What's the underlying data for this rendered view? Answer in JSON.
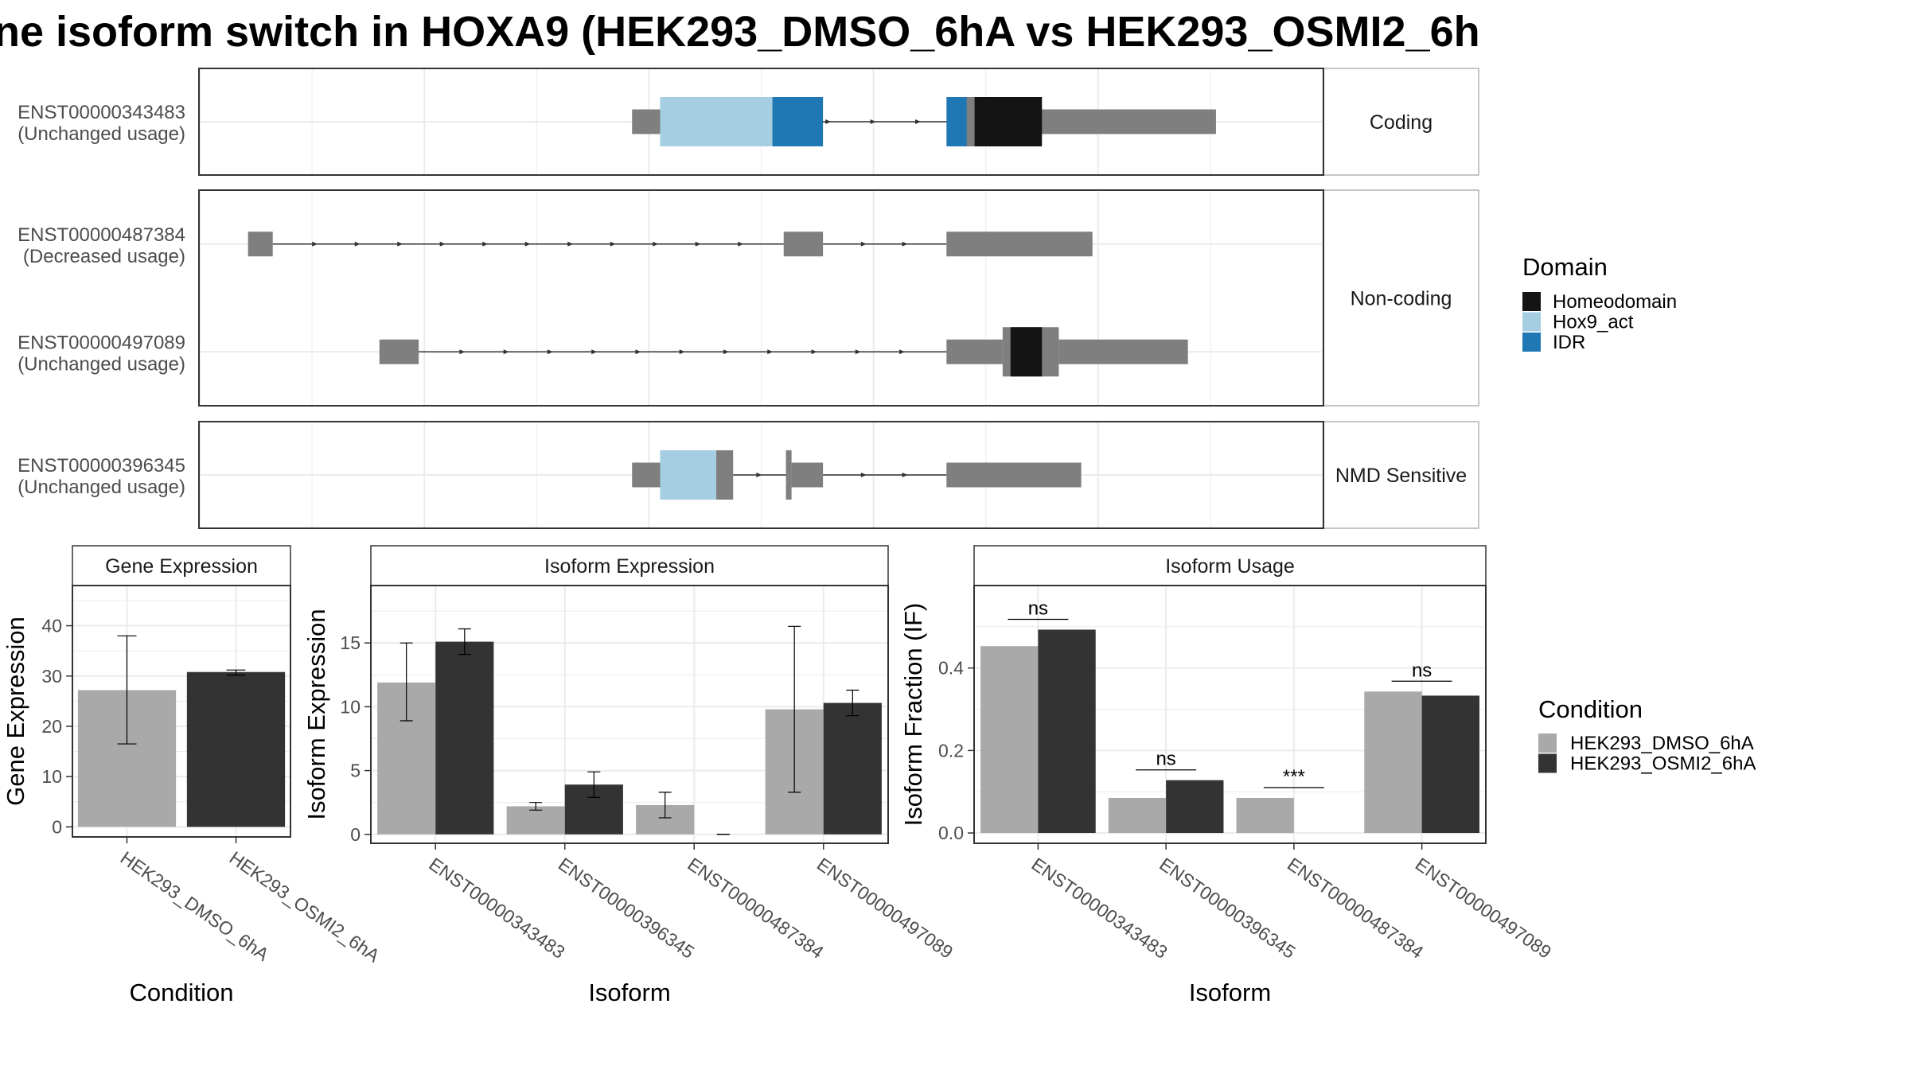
{
  "title": "ne isoform switch in HOXA9 (HEK293_DMSO_6hA vs HEK293_OSMI2_6h",
  "colors": {
    "utr": "#7f7f7f",
    "intron": "#333333",
    "panel_border": "#333333",
    "strip_fill": "#ffffff",
    "grid": "#ebebeb",
    "domains": {
      "Homeodomain": "#141414",
      "Hox9_act": "#a6cee3",
      "IDR": "#1f78b4"
    },
    "conditions": {
      "HEK293_DMSO_6hA": "#a9a9a9",
      "HEK293_OSMI2_6hA": "#333333"
    }
  },
  "chart_data": [
    {
      "type": "gene-structure",
      "coordinate_range": [
        0,
        100
      ],
      "groups": [
        {
          "label": "Coding",
          "transcripts": [
            {
              "id": "ENST00000343483",
              "usage": "(Unchanged usage)",
              "exons": [
                {
                  "start": 38.5,
                  "end": 41,
                  "type": "utr"
                },
                {
                  "start": 41,
                  "end": 52,
                  "type": "cds"
                },
                {
                  "start": 68,
                  "end": 71.5,
                  "type": "cds"
                },
                {
                  "start": 71.5,
                  "end": 90.5,
                  "type": "utr"
                }
              ],
              "domains": [
                {
                  "name": "Hox9_act",
                  "start": 41,
                  "end": 51
                },
                {
                  "name": "IDR",
                  "start": 51,
                  "end": 55.5
                },
                {
                  "name": "IDR",
                  "start": 66.5,
                  "end": 68.3
                },
                {
                  "name": "Homeodomain",
                  "start": 69,
                  "end": 75
                }
              ]
            }
          ]
        },
        {
          "label": "Non-coding",
          "transcripts": [
            {
              "id": "ENST00000487384",
              "usage": "(Decreased usage)",
              "exons": [
                {
                  "start": 4.3,
                  "end": 6.5,
                  "type": "utr"
                },
                {
                  "start": 52,
                  "end": 55.5,
                  "type": "utr"
                },
                {
                  "start": 66.5,
                  "end": 79.5,
                  "type": "utr"
                }
              ],
              "domains": []
            },
            {
              "id": "ENST00000497089",
              "usage": "(Unchanged usage)",
              "exons": [
                {
                  "start": 16,
                  "end": 19.5,
                  "type": "utr"
                },
                {
                  "start": 66.5,
                  "end": 71.5,
                  "type": "utr"
                },
                {
                  "start": 71.5,
                  "end": 76.5,
                  "type": "cds"
                },
                {
                  "start": 76.5,
                  "end": 88,
                  "type": "utr"
                }
              ],
              "domains": [
                {
                  "name": "Homeodomain",
                  "start": 72.2,
                  "end": 75
                }
              ]
            }
          ]
        },
        {
          "label": "NMD Sensitive",
          "transcripts": [
            {
              "id": "ENST00000396345",
              "usage": "(Unchanged usage)",
              "exons": [
                {
                  "start": 38.5,
                  "end": 41,
                  "type": "utr"
                },
                {
                  "start": 41,
                  "end": 47.5,
                  "type": "cds"
                },
                {
                  "start": 52.2,
                  "end": 52.7,
                  "type": "cds"
                },
                {
                  "start": 52.7,
                  "end": 55.5,
                  "type": "utr"
                },
                {
                  "start": 66.5,
                  "end": 78.5,
                  "type": "utr"
                }
              ],
              "domains": [
                {
                  "name": "Hox9_act",
                  "start": 41,
                  "end": 46
                }
              ]
            }
          ]
        }
      ],
      "legend": {
        "title": "Domain",
        "entries": [
          "Homeodomain",
          "Hox9_act",
          "IDR"
        ],
        "position": "right"
      }
    },
    {
      "type": "bar",
      "title": "Gene Expression",
      "xlabel": "Condition",
      "ylabel": "Gene Expression",
      "categories": [
        "HEK293_DMSO_6hA",
        "HEK293_OSMI2_6hA"
      ],
      "values": [
        27.2,
        30.8
      ],
      "errors": [
        [
          16.5,
          38.0
        ],
        [
          30.2,
          31.2
        ]
      ],
      "ylim": [
        -2,
        48
      ],
      "yticks": [
        0,
        10,
        20,
        30,
        40
      ],
      "grid": true
    },
    {
      "type": "bar",
      "title": "Isoform Expression",
      "xlabel": "Isoform",
      "ylabel": "Isoform Expression",
      "categories": [
        "ENST00000343483",
        "ENST00000396345",
        "ENST00000487384",
        "ENST00000497089"
      ],
      "series": [
        {
          "name": "HEK293_DMSO_6hA",
          "values": [
            11.9,
            2.2,
            2.3,
            9.8
          ],
          "errors": [
            [
              8.9,
              15.0
            ],
            [
              1.9,
              2.5
            ],
            [
              1.3,
              3.3
            ],
            [
              3.3,
              16.3
            ]
          ]
        },
        {
          "name": "HEK293_OSMI2_6hA",
          "values": [
            15.1,
            3.9,
            0,
            10.3
          ],
          "errors": [
            [
              14.1,
              16.1
            ],
            [
              2.9,
              4.9
            ],
            [
              0,
              0
            ],
            [
              9.3,
              11.3
            ]
          ]
        }
      ],
      "ylim": [
        -0.7,
        19.5
      ],
      "yticks": [
        0,
        5,
        10,
        15
      ],
      "grid": true
    },
    {
      "type": "bar",
      "title": "Isoform Usage",
      "xlabel": "Isoform",
      "ylabel": "Isoform Fraction (IF)",
      "categories": [
        "ENST00000343483",
        "ENST00000396345",
        "ENST00000487384",
        "ENST00000497089"
      ],
      "series": [
        {
          "name": "HEK293_DMSO_6hA",
          "values": [
            0.453,
            0.085,
            0.085,
            0.343
          ]
        },
        {
          "name": "HEK293_OSMI2_6hA",
          "values": [
            0.493,
            0.128,
            0,
            0.333
          ]
        }
      ],
      "significance": [
        "ns",
        "ns",
        "***",
        "ns"
      ],
      "ylim": [
        -0.025,
        0.6
      ],
      "yticks": [
        0.0,
        0.2,
        0.4
      ],
      "yticklabels": [
        "0.0",
        "0.2",
        "0.4"
      ],
      "grid": true,
      "legend": {
        "title": "Condition",
        "entries": [
          "HEK293_DMSO_6hA",
          "HEK293_OSMI2_6hA"
        ],
        "position": "right"
      }
    }
  ]
}
